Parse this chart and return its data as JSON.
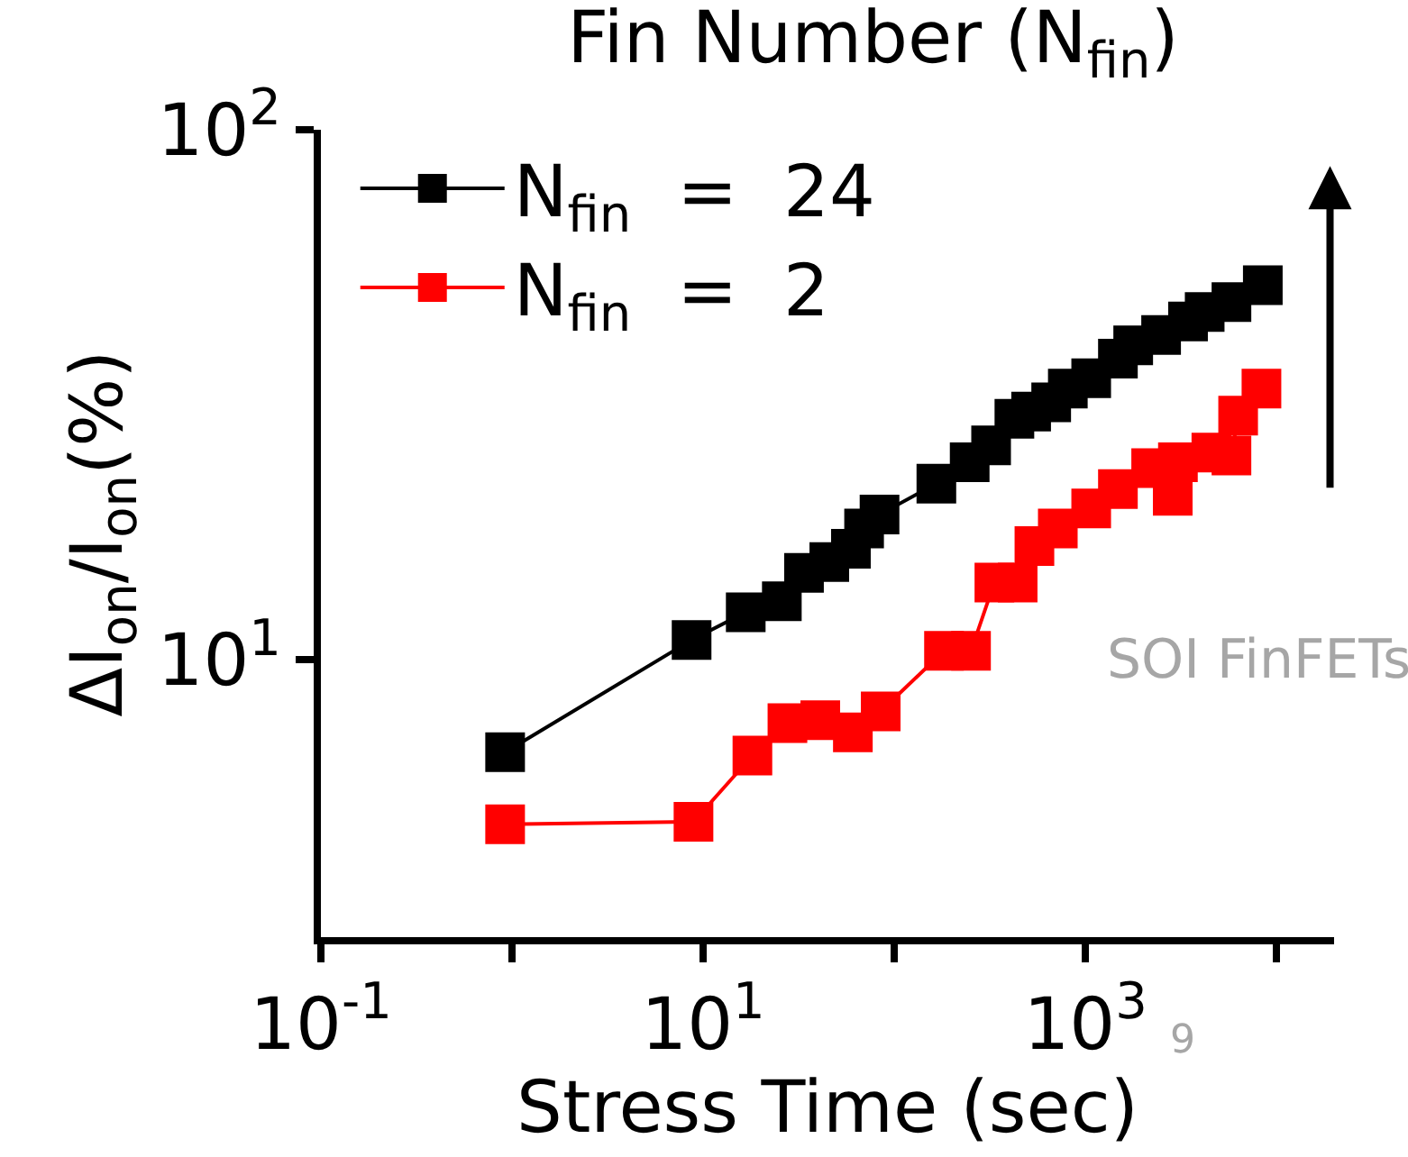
{
  "chart_data": {
    "type": "line",
    "title": "Fin Number (N$_{fin}$)",
    "xlabel": "Stress Time (sec)",
    "ylabel": "ΔI$_{on}$/I$_{on}$(%)",
    "log": "xy",
    "xlim": [
      0.1,
      20000
    ],
    "ylim": [
      3,
      100
    ],
    "xticks": [
      {
        "value": 0.1,
        "label": "10$^{-1}$"
      },
      {
        "value": 1,
        "label": null
      },
      {
        "value": 10,
        "label": "10$^{1}$"
      },
      {
        "value": 100,
        "label": null
      },
      {
        "value": 1000,
        "label": "10$^{3}$"
      },
      {
        "value": 10000,
        "label": null
      }
    ],
    "yticks": [
      {
        "value": 10,
        "label": "10$^{1}$"
      },
      {
        "value": 100,
        "label": "10$^{2}$"
      }
    ],
    "legend": "top left",
    "marker": "square",
    "line_style": "solid",
    "series": [
      {
        "name": "N$_{fin}$  =  24",
        "color": "#000000",
        "x": [
          0.92,
          8.7,
          16.7,
          25.8,
          33.7,
          45.7,
          59.3,
          69.5,
          83.7,
          166,
          248,
          321,
          425,
          520,
          662,
          809,
          1072,
          1479,
          1778,
          2489,
          3443,
          4207,
          5808,
          8474
        ],
        "values": [
          6.7,
          10.9,
          12.3,
          12.9,
          14.6,
          15.3,
          16.2,
          17.7,
          18.8,
          21.5,
          23.6,
          25.4,
          28.5,
          29.4,
          30.6,
          32.5,
          34.0,
          37.0,
          39.2,
          41.0,
          43.5,
          45.3,
          47.3,
          50.9
        ]
      },
      {
        "name": "N$_{fin}$  =  2",
        "color": "#ff0000",
        "x": [
          0.92,
          8.9,
          18.1,
          27.6,
          41,
          60.7,
          84.9,
          182,
          252,
          334,
          442,
          541,
          717,
          1072,
          1479,
          2208,
          2863,
          3048,
          4560,
          5808,
          6296,
          8337
        ],
        "values": [
          4.9,
          4.95,
          6.6,
          7.6,
          7.7,
          7.3,
          8.0,
          10.4,
          10.4,
          14.0,
          14.0,
          16.4,
          17.7,
          19.3,
          21.0,
          23.0,
          20.4,
          23.6,
          24.6,
          24.3,
          28.9,
          32.5
        ]
      }
    ],
    "annotations": [
      "SOI FinFETs",
      "9"
    ]
  }
}
